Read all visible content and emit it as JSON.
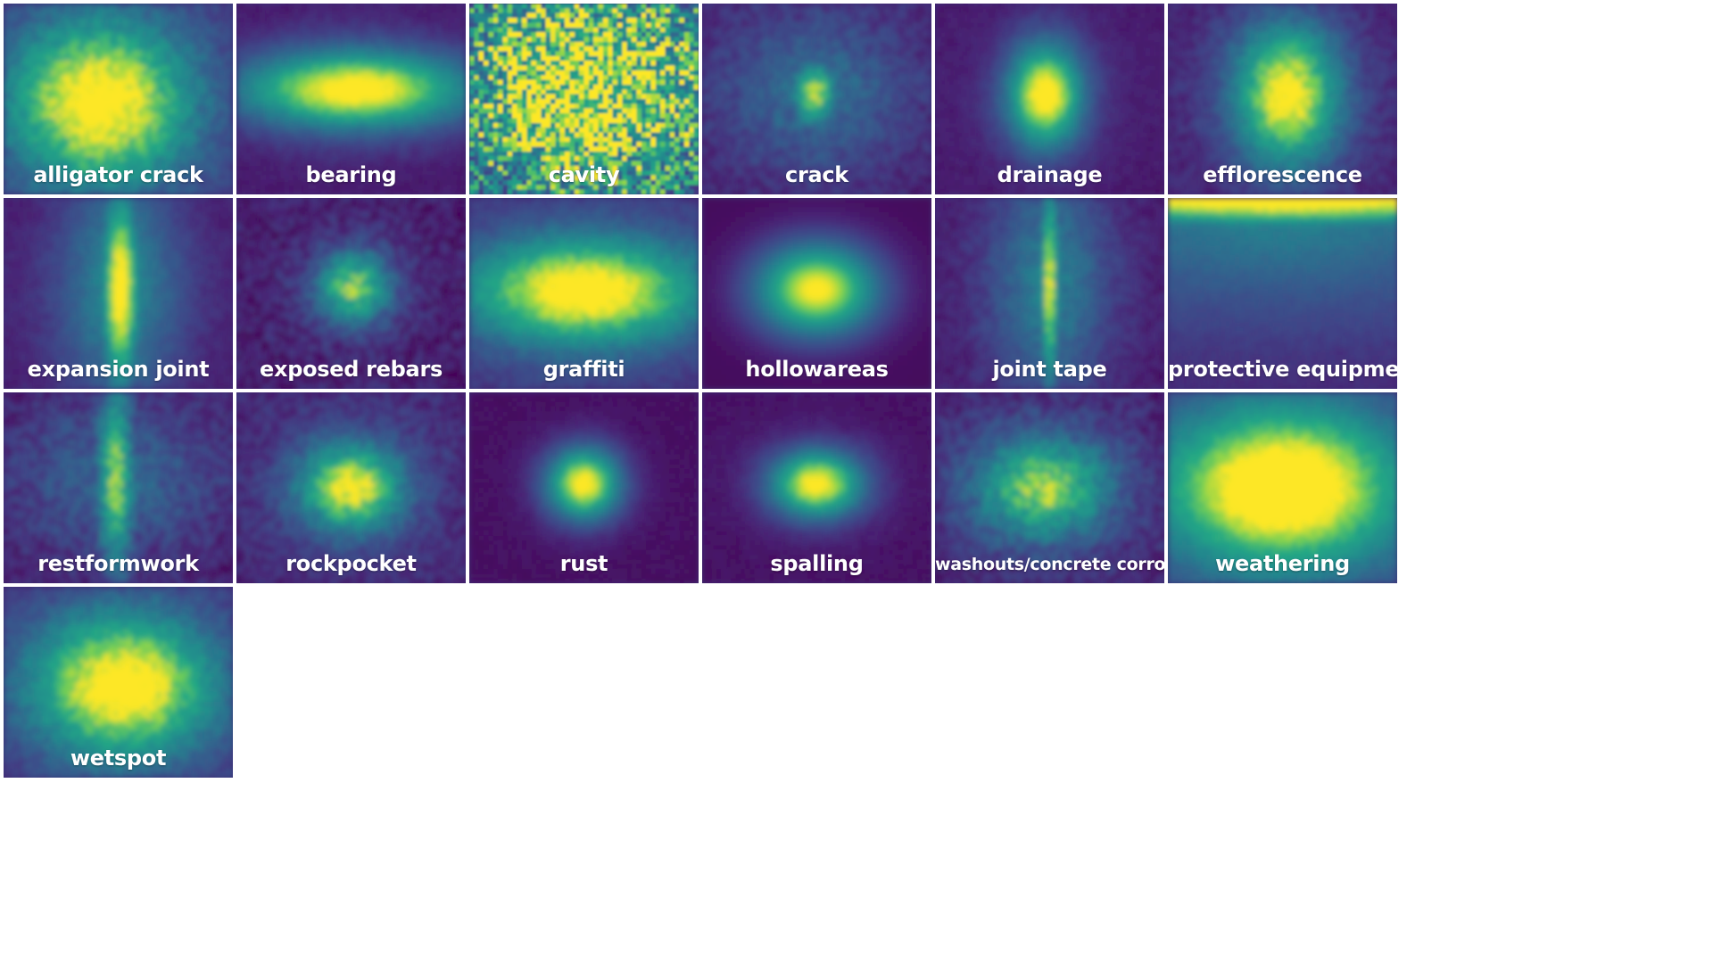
{
  "chart_data": {
    "type": "heatmap",
    "colormap": "viridis",
    "grid": {
      "columns": 6,
      "rows": 4
    },
    "panels": [
      {
        "label": "alligator crack",
        "shape": "blob",
        "cx": 0.42,
        "cy": 0.52,
        "rx": 0.3,
        "ry": 0.33,
        "peak": 0.95,
        "base": 0.3,
        "texture": 0.1
      },
      {
        "label": "bearing",
        "shape": "blob",
        "cx": 0.52,
        "cy": 0.45,
        "rx": 0.38,
        "ry": 0.15,
        "peak": 1.0,
        "base": 0.15,
        "texture": 0.04
      },
      {
        "label": "cavity",
        "shape": "noise",
        "cx": 0.5,
        "cy": 0.45,
        "rx": 0.6,
        "ry": 0.55,
        "peak": 0.75,
        "base": 0.45,
        "texture": 0.35
      },
      {
        "label": "crack",
        "shape": "cross",
        "cx": 0.49,
        "cy": 0.47,
        "rx": 0.07,
        "ry": 0.12,
        "peak": 0.85,
        "base": 0.18,
        "texture": 0.1
      },
      {
        "label": "drainage",
        "shape": "blob",
        "cx": 0.48,
        "cy": 0.48,
        "rx": 0.12,
        "ry": 0.2,
        "peak": 1.0,
        "base": 0.15,
        "texture": 0.04
      },
      {
        "label": "efflorescence",
        "shape": "blob",
        "cx": 0.52,
        "cy": 0.48,
        "rx": 0.17,
        "ry": 0.28,
        "peak": 0.95,
        "base": 0.2,
        "texture": 0.08
      },
      {
        "label": "expansion joint",
        "shape": "vertical",
        "cx": 0.51,
        "cy": 0.48,
        "rx": 0.06,
        "ry": 0.4,
        "peak": 1.0,
        "base": 0.18,
        "texture": 0.05
      },
      {
        "label": "exposed rebars",
        "shape": "blob",
        "cx": 0.51,
        "cy": 0.47,
        "rx": 0.12,
        "ry": 0.14,
        "peak": 0.8,
        "base": 0.15,
        "texture": 0.12
      },
      {
        "label": "graffiti",
        "shape": "blob",
        "cx": 0.5,
        "cy": 0.49,
        "rx": 0.4,
        "ry": 0.2,
        "peak": 0.95,
        "base": 0.3,
        "texture": 0.06
      },
      {
        "label": "hollowareas",
        "shape": "blob",
        "cx": 0.5,
        "cy": 0.48,
        "rx": 0.2,
        "ry": 0.18,
        "peak": 1.0,
        "base": 0.05,
        "texture": 0.0
      },
      {
        "label": "joint tape",
        "shape": "vertical",
        "cx": 0.5,
        "cy": 0.45,
        "rx": 0.03,
        "ry": 0.42,
        "peak": 0.9,
        "base": 0.16,
        "texture": 0.07
      },
      {
        "label": "protective equipment",
        "shape": "topband",
        "cx": 0.5,
        "cy": 0.0,
        "rx": 0.7,
        "ry": 0.1,
        "peak": 1.0,
        "base": 0.25,
        "texture": 0.03
      },
      {
        "label": "restformwork",
        "shape": "cross",
        "cx": 0.49,
        "cy": 0.45,
        "rx": 0.06,
        "ry": 0.38,
        "peak": 0.8,
        "base": 0.16,
        "texture": 0.12
      },
      {
        "label": "rockpocket",
        "shape": "blob",
        "cx": 0.5,
        "cy": 0.5,
        "rx": 0.17,
        "ry": 0.17,
        "peak": 0.9,
        "base": 0.22,
        "texture": 0.1
      },
      {
        "label": "rust",
        "shape": "blob",
        "cx": 0.5,
        "cy": 0.48,
        "rx": 0.12,
        "ry": 0.14,
        "peak": 1.0,
        "base": 0.08,
        "texture": 0.03
      },
      {
        "label": "spalling",
        "shape": "blob",
        "cx": 0.5,
        "cy": 0.48,
        "rx": 0.15,
        "ry": 0.13,
        "peak": 1.0,
        "base": 0.1,
        "texture": 0.03
      },
      {
        "label": "washouts/concrete corrosion",
        "shape": "blob",
        "cx": 0.47,
        "cy": 0.5,
        "rx": 0.22,
        "ry": 0.2,
        "peak": 0.8,
        "base": 0.2,
        "texture": 0.12
      },
      {
        "label": "weathering",
        "shape": "blob",
        "cx": 0.5,
        "cy": 0.5,
        "rx": 0.42,
        "ry": 0.32,
        "peak": 1.0,
        "base": 0.35,
        "texture": 0.04
      },
      {
        "label": "wetspot",
        "shape": "blob",
        "cx": 0.52,
        "cy": 0.52,
        "rx": 0.3,
        "ry": 0.28,
        "peak": 0.95,
        "base": 0.3,
        "texture": 0.08
      }
    ]
  }
}
